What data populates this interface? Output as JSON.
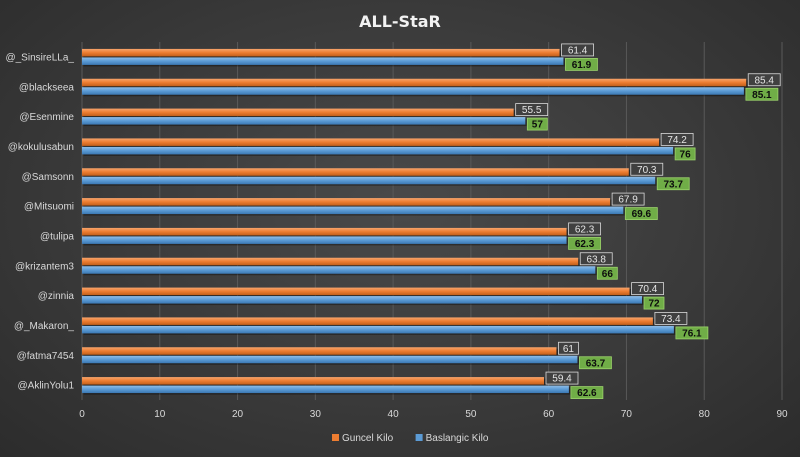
{
  "chart_data": {
    "type": "bar",
    "orientation": "horizontal",
    "title": "ALL-StaR",
    "categories": [
      "@_SinsireLLa_",
      "@blackseea",
      "@Esenmine",
      "@kokulusabun",
      "@Samsonn",
      "@Mitsuomi",
      "@tulipa",
      "@krizantem3",
      "@zinnia",
      "@_Makaron_",
      "@fatma7454",
      "@AklinYolu1"
    ],
    "series": [
      {
        "name": "Guncel Kilo",
        "color": "#ed7d31",
        "values": [
          61.4,
          85.4,
          55.5,
          74.2,
          70.3,
          67.9,
          62.3,
          63.8,
          70.4,
          73.4,
          61,
          59.4
        ]
      },
      {
        "name": "Baslangic Kilo",
        "color": "#5b9bd5",
        "values": [
          61.9,
          85.1,
          57,
          76,
          73.7,
          69.6,
          62.3,
          66,
          72,
          76.1,
          63.7,
          62.6
        ]
      }
    ],
    "xlim": [
      0,
      90
    ],
    "xticks": [
      0,
      10,
      20,
      30,
      40,
      50,
      60,
      70,
      80,
      90
    ],
    "xlabel": "",
    "ylabel": "",
    "grid": true,
    "legend_position": "bottom"
  }
}
